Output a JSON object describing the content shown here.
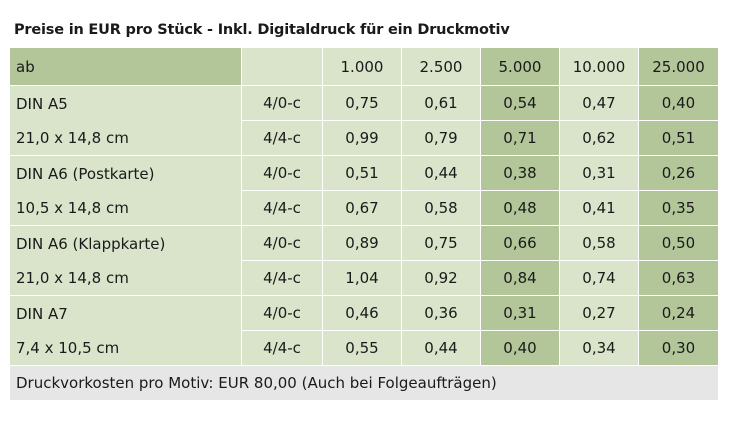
{
  "title": "Preise in EUR pro Stück - Inkl. Digitaldruck für ein Druckmotiv",
  "header": {
    "label": "ab",
    "quantities": [
      "1.000",
      "2.500",
      "5.000",
      "10.000",
      "25.000"
    ]
  },
  "products": [
    {
      "name": "DIN A5",
      "size": "21,0 x 14,8 cm",
      "rows": [
        {
          "color": "4/0-c",
          "prices": [
            "0,75",
            "0,61",
            "0,54",
            "0,47",
            "0,40"
          ]
        },
        {
          "color": "4/4-c",
          "prices": [
            "0,99",
            "0,79",
            "0,71",
            "0,62",
            "0,51"
          ]
        }
      ]
    },
    {
      "name": "DIN A6 (Postkarte)",
      "size": "10,5 x 14,8 cm",
      "rows": [
        {
          "color": "4/0-c",
          "prices": [
            "0,51",
            "0,44",
            "0,38",
            "0,31",
            "0,26"
          ]
        },
        {
          "color": "4/4-c",
          "prices": [
            "0,67",
            "0,58",
            "0,48",
            "0,41",
            "0,35"
          ]
        }
      ]
    },
    {
      "name": "DIN A6 (Klappkarte)",
      "size": "21,0 x 14,8 cm",
      "rows": [
        {
          "color": "4/0-c",
          "prices": [
            "0,89",
            "0,75",
            "0,66",
            "0,58",
            "0,50"
          ]
        },
        {
          "color": "4/4-c",
          "prices": [
            "1,04",
            "0,92",
            "0,84",
            "0,74",
            "0,63"
          ]
        }
      ]
    },
    {
      "name": "DIN A7",
      "size": "7,4 x 10,5 cm",
      "rows": [
        {
          "color": "4/0-c",
          "prices": [
            "0,46",
            "0,36",
            "0,31",
            "0,27",
            "0,24"
          ]
        },
        {
          "color": "4/4-c",
          "prices": [
            "0,55",
            "0,44",
            "0,40",
            "0,34",
            "0,30"
          ]
        }
      ]
    }
  ],
  "footer": "Druckvorkosten pro Motiv: EUR 80,00 (Auch bei Folgeaufträgen)",
  "colors": {
    "dark_green": "#b2c69a",
    "light_green": "#d9e4cb",
    "footer_gray": "#e6e6e6"
  }
}
